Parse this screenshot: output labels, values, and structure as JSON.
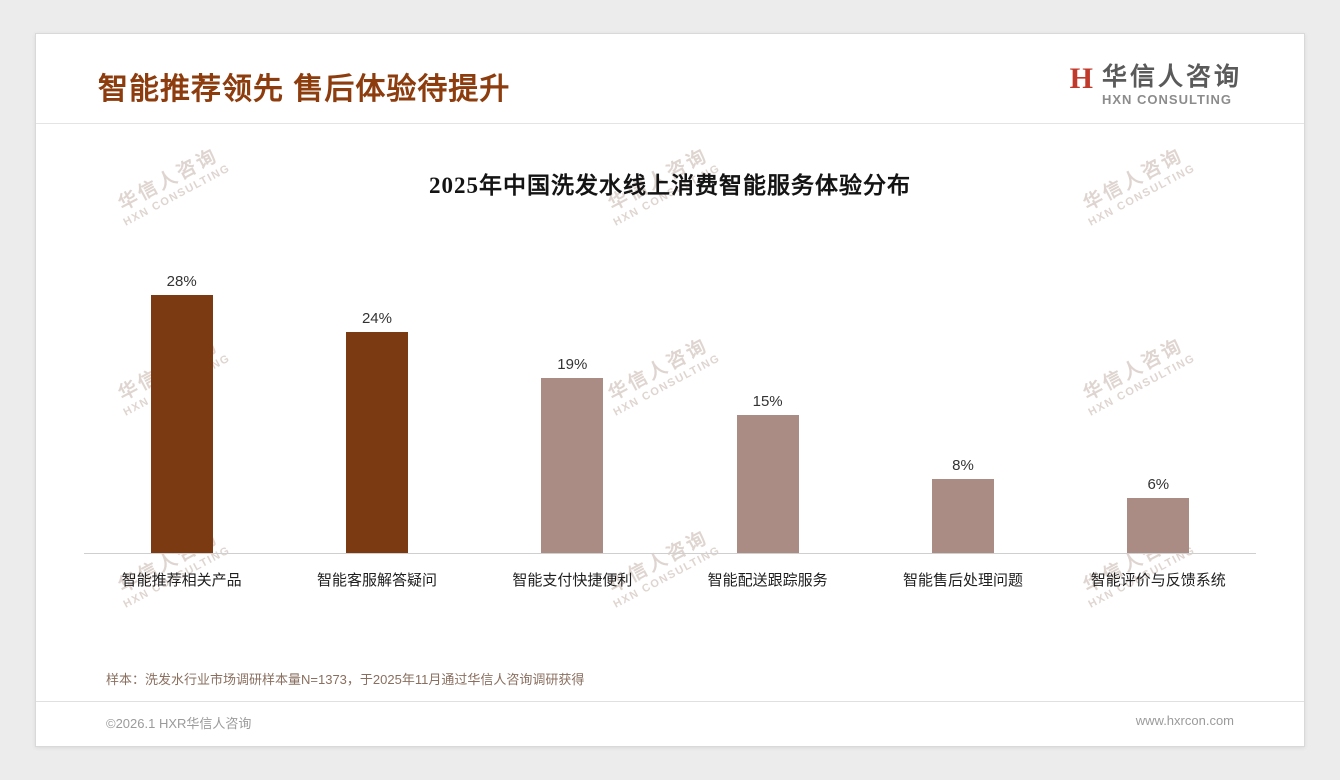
{
  "header": {
    "title": "智能推荐领先 售后体验待提升",
    "logo_mark": "H",
    "logo_cn": "华信人咨询",
    "logo_en": "HXN CONSULTING"
  },
  "watermark": {
    "line1": "华信人咨询",
    "line2": "HXN CONSULTING"
  },
  "chart_data": {
    "type": "bar",
    "title": "2025年中国洗发水线上消费智能服务体验分布",
    "categories": [
      "智能推荐相关产品",
      "智能客服解答疑问",
      "智能支付快捷便利",
      "智能配送跟踪服务",
      "智能售后处理问题",
      "智能评价与反馈系统"
    ],
    "values": [
      28,
      24,
      19,
      15,
      8,
      6
    ],
    "value_labels": [
      "28%",
      "24%",
      "19%",
      "15%",
      "8%",
      "6%"
    ],
    "ylim": [
      0,
      30
    ],
    "grid": false,
    "legend": "none",
    "highlight_count": 2,
    "bar_color_primary": "#7c3a12",
    "bar_color_secondary": "#aa8c85"
  },
  "footnote": "样本：洗发水行业市场调研样本量N=1373，于2025年11月通过华信人咨询调研获得",
  "footer": {
    "left": "©2026.1 HXR华信人咨询",
    "right": "www.hxrcon.com"
  },
  "colors": {
    "title_accent": "#8d3c0e",
    "logo_red": "#c0392b"
  }
}
